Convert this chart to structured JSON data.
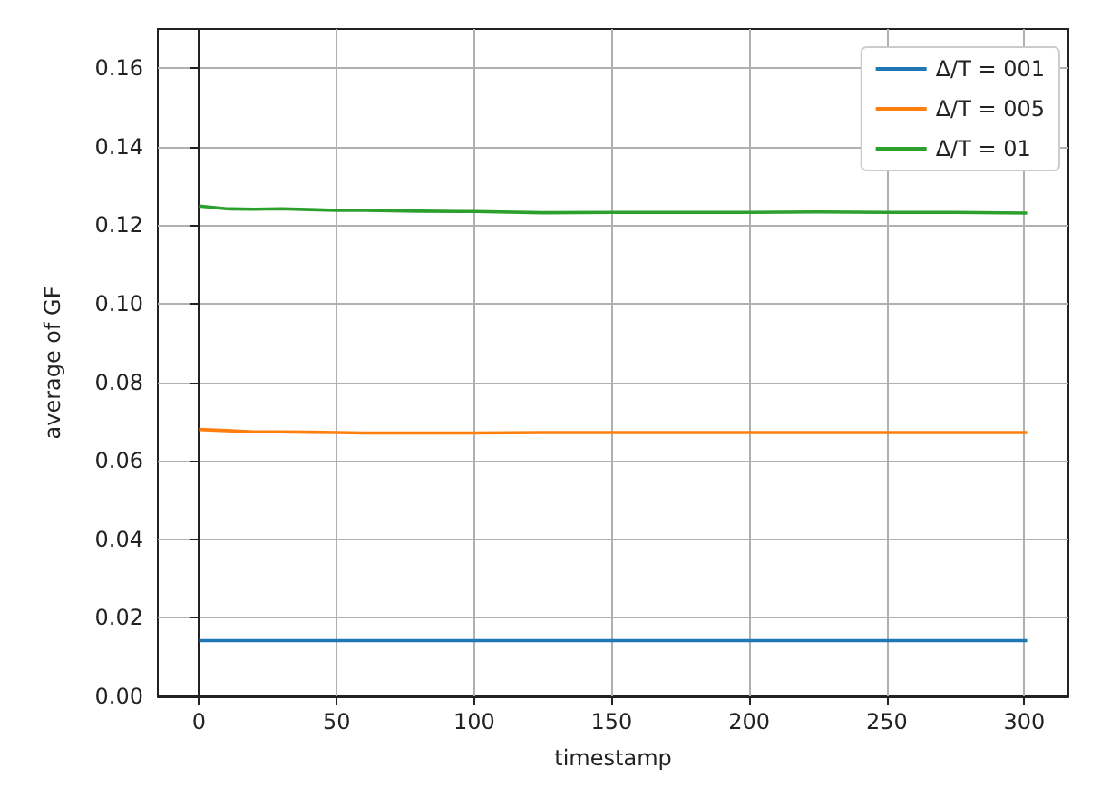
{
  "chart_data": {
    "type": "line",
    "xlabel": "timestamp",
    "ylabel": "average of GF",
    "x": [
      0,
      10,
      20,
      30,
      40,
      50,
      60,
      80,
      100,
      125,
      150,
      175,
      200,
      225,
      250,
      275,
      301
    ],
    "series": [
      {
        "name": "Δ/T = 001",
        "color": "#1f77b4",
        "values": [
          0.0142,
          0.0142,
          0.0142,
          0.0142,
          0.0142,
          0.0142,
          0.0142,
          0.0142,
          0.0142,
          0.0142,
          0.0142,
          0.0142,
          0.0142,
          0.0142,
          0.0142,
          0.0142,
          0.0142
        ]
      },
      {
        "name": "Δ/T = 005",
        "color": "#ff7f0e",
        "values": [
          0.068,
          0.0677,
          0.0674,
          0.0674,
          0.0673,
          0.0672,
          0.0671,
          0.0671,
          0.0671,
          0.0672,
          0.0672,
          0.0672,
          0.0672,
          0.0672,
          0.0672,
          0.0672,
          0.0672
        ]
      },
      {
        "name": "Δ/T = 01",
        "color": "#2ca02c",
        "values": [
          0.1249,
          0.1242,
          0.1241,
          0.1242,
          0.124,
          0.1238,
          0.1238,
          0.1236,
          0.1235,
          0.1232,
          0.1233,
          0.1233,
          0.1233,
          0.1234,
          0.1233,
          0.1233,
          0.1231
        ]
      }
    ],
    "xlim": [
      -15,
      316
    ],
    "xticks": [
      0,
      50,
      100,
      150,
      200,
      250,
      300
    ],
    "ylim": [
      0,
      0.17
    ],
    "yticks": [
      {
        "value": 0,
        "label": "0.00"
      },
      {
        "value": 0.02,
        "label": "0.02"
      },
      {
        "value": 0.04,
        "label": "0.04"
      },
      {
        "value": 0.06,
        "label": "0.06"
      },
      {
        "value": 0.08,
        "label": "0.08"
      },
      {
        "value": 0.1,
        "label": "0.10"
      },
      {
        "value": 0.12,
        "label": "0.12"
      },
      {
        "value": 0.14,
        "label": "0.14"
      },
      {
        "value": 0.16,
        "label": "0.16"
      }
    ],
    "grid": true,
    "legend": "top right"
  }
}
